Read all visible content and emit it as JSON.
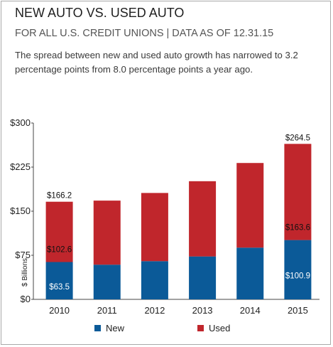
{
  "header": {
    "title": "NEW AUTO VS. USED AUTO",
    "subtitle": "FOR ALL U.S. CREDIT UNIONS | DATA AS OF 12.31.15",
    "description": "The spread between new and used auto growth has narrowed to 3.2 percentage points from 8.0 percentage points a year ago."
  },
  "chart_data": {
    "type": "bar",
    "stacked": true,
    "categories": [
      "2010",
      "2011",
      "2012",
      "2013",
      "2014",
      "2015"
    ],
    "series": [
      {
        "name": "New",
        "color": "#0b5a98",
        "values": [
          63.5,
          59,
          65,
          73,
          88,
          100.9
        ]
      },
      {
        "name": "Used",
        "color": "#c0262c",
        "values": [
          102.6,
          109,
          116,
          128,
          144,
          163.6
        ]
      }
    ],
    "ylabel": "$ Billions",
    "ylim": [
      0,
      300
    ],
    "yticks": [
      "$0",
      "$75",
      "$150",
      "$225",
      "$300"
    ],
    "ytick_values": [
      0,
      75,
      150,
      225,
      300
    ],
    "annotations": [
      {
        "category": "2010",
        "total": "$166.2",
        "used": "$102.6",
        "new": "$63.5"
      },
      {
        "category": "2015",
        "total": "$264.5",
        "used": "$163.6",
        "new": "$100.9"
      }
    ],
    "legend_position": "bottom",
    "grid": false
  }
}
